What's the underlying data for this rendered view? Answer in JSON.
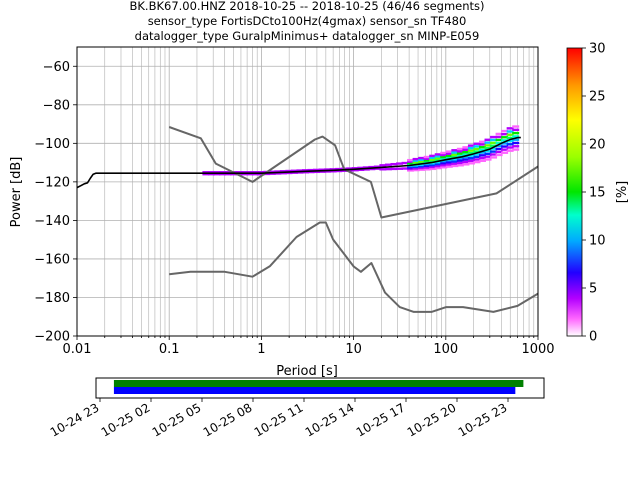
{
  "chart_data": [
    {
      "type": "line",
      "title_lines": [
        "BK.BK67.00.HNZ   2018-10-25 -- 2018-10-25  (46/46 segments)",
        "sensor_type FortisDCto100Hz(4gmax) sensor_sn TF480",
        "datalogger_type GuralpMinimus+ datalogger_sn MINP-E059"
      ],
      "xlabel": "Period [s]",
      "ylabel": "Power [dB]",
      "xscale": "log",
      "xlim": [
        0.01,
        1000
      ],
      "ylim": [
        -200,
        -50
      ],
      "x_ticks": [
        {
          "v": 0.01,
          "label": "0.01"
        },
        {
          "v": 0.1,
          "label": "0.1"
        },
        {
          "v": 1,
          "label": "1"
        },
        {
          "v": 10,
          "label": "10"
        },
        {
          "v": 100,
          "label": "100"
        },
        {
          "v": 1000,
          "label": "1000"
        }
      ],
      "y_ticks": [
        {
          "v": -60,
          "label": "−60"
        },
        {
          "v": -80,
          "label": "−80"
        },
        {
          "v": -100,
          "label": "−100"
        },
        {
          "v": -120,
          "label": "−120"
        },
        {
          "v": -140,
          "label": "−140"
        },
        {
          "v": -160,
          "label": "−160"
        },
        {
          "v": -180,
          "label": "−180"
        },
        {
          "v": -200,
          "label": "−200"
        }
      ],
      "grid": true,
      "series": [
        {
          "role": "noise-model-high",
          "color": "#666666",
          "x": [
            0.1,
            0.22,
            0.32,
            0.8,
            3.8,
            4.6,
            6.3,
            7.9,
            15.4,
            20,
            354.8,
            1000
          ],
          "y": [
            -91.5,
            -97.4,
            -110.5,
            -120,
            -98,
            -96.5,
            -101,
            -113.5,
            -120,
            -138.5,
            -126,
            -112
          ]
        },
        {
          "role": "noise-model-low",
          "color": "#666666",
          "x": [
            0.1,
            0.17,
            0.4,
            0.8,
            1.24,
            2.4,
            4.3,
            5,
            6,
            10,
            12,
            15.6,
            21.9,
            31.6,
            45,
            70,
            101,
            154,
            328,
            600,
            1000
          ],
          "y": [
            -168,
            -166.7,
            -166.7,
            -169.2,
            -163.7,
            -148.6,
            -141.1,
            -141.1,
            -149.9,
            -163.9,
            -166.7,
            -162.1,
            -177.5,
            -185,
            -187.5,
            -187.5,
            -185,
            -185,
            -187.5,
            -184.4,
            -178
          ]
        },
        {
          "role": "mode",
          "color": "#000000",
          "x": [
            0.01,
            0.011,
            0.012,
            0.013,
            0.014,
            0.015,
            0.016,
            0.1,
            1,
            3,
            6,
            10,
            20,
            40,
            70,
            100,
            150,
            200,
            300,
            400,
            500,
            600,
            650
          ],
          "y": [
            -123,
            -122,
            -121,
            -120.5,
            -118,
            -116,
            -115.5,
            -115.5,
            -115.5,
            -114.5,
            -114,
            -113.5,
            -112.5,
            -111.5,
            -110,
            -108.5,
            -107,
            -105.5,
            -103,
            -100,
            -98,
            -97,
            -97
          ]
        }
      ],
      "colorbar": {
        "label": "[%]",
        "range": [
          0,
          30
        ],
        "ticks": [
          {
            "v": 0,
            "label": "0"
          },
          {
            "v": 5,
            "label": "5"
          },
          {
            "v": 10,
            "label": "10"
          },
          {
            "v": 15,
            "label": "15"
          },
          {
            "v": 20,
            "label": "20"
          },
          {
            "v": 25,
            "label": "25"
          },
          {
            "v": 30,
            "label": "30"
          }
        ]
      }
    },
    {
      "type": "timeline",
      "tick_labels": [
        "10-24 23",
        "10-25 02",
        "10-25 05",
        "10-25 08",
        "10-25 11",
        "10-25 14",
        "10-25 17",
        "10-25 20",
        "10-25 23"
      ],
      "bars": [
        {
          "role": "data-available",
          "color": "#008000",
          "start_fraction": 0.04,
          "end_fraction": 0.954
        },
        {
          "role": "psd-used",
          "color": "#0000ff",
          "start_fraction": 0.04,
          "end_fraction": 0.936
        }
      ]
    }
  ]
}
